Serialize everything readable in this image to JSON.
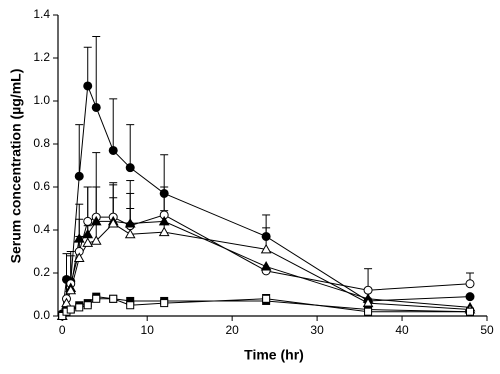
{
  "chart_data": {
    "type": "line",
    "xlabel": "Time (hr)",
    "ylabel": "Serum concentration (µg/mL)",
    "x": [
      0,
      0.5,
      1,
      2,
      3,
      4,
      6,
      8,
      12,
      24,
      36,
      48
    ],
    "xlim": [
      -0.5,
      50
    ],
    "xticks": [
      0,
      10,
      20,
      30,
      40,
      50
    ],
    "ylim": [
      0,
      1.4
    ],
    "yticks": [
      {
        "value": 0,
        "label": "0.0"
      },
      {
        "value": 0.2,
        "label": "0.2"
      },
      {
        "value": 0.4,
        "label": "0.4"
      },
      {
        "value": 0.6,
        "label": "0.6"
      },
      {
        "value": 0.8,
        "label": "0.8"
      },
      {
        "value": 1,
        "label": "1.0"
      },
      {
        "value": 1.2,
        "label": "1.2"
      },
      {
        "value": 1.4,
        "label": "1.4"
      }
    ],
    "series": [
      {
        "marker": "circle",
        "filled": true,
        "color": "#000000",
        "values": [
          0.01,
          0.17,
          0.16,
          0.65,
          1.07,
          0.97,
          0.77,
          0.69,
          0.57,
          0.37,
          0.07,
          0.09
        ],
        "errors": [
          null,
          0.12,
          0.12,
          0.24,
          0.18,
          0.33,
          0.24,
          0.2,
          0.18,
          0.1,
          null,
          null
        ]
      },
      {
        "marker": "circle",
        "filled": false,
        "color": "#000000",
        "values": [
          0,
          0.08,
          0.15,
          0.3,
          0.44,
          0.46,
          0.46,
          0.42,
          0.47,
          0.21,
          0.12,
          0.15
        ],
        "errors": [
          null,
          0.1,
          0.15,
          0.15,
          0.16,
          0.3,
          0.15,
          0.15,
          0.1,
          null,
          0.1,
          0.05
        ]
      },
      {
        "marker": "triangle",
        "filled": true,
        "color": "#000000",
        "values": [
          0,
          0.05,
          0.13,
          0.36,
          0.38,
          0.44,
          0.44,
          0.43,
          0.44,
          0.23,
          0.08,
          0.04
        ],
        "errors": [
          null,
          null,
          null,
          0.16,
          0.22,
          0.16,
          0.18,
          0.2,
          0.16,
          null,
          null,
          null
        ]
      },
      {
        "marker": "triangle",
        "filled": false,
        "color": "#000000",
        "values": [
          0,
          0.06,
          0.12,
          0.27,
          0.34,
          0.35,
          0.43,
          0.38,
          0.39,
          0.31,
          0.06,
          0.03
        ],
        "errors": [
          null,
          null,
          null,
          0.1,
          0.08,
          0.1,
          0.12,
          0.12,
          0.1,
          0.1,
          null,
          null
        ]
      },
      {
        "marker": "square",
        "filled": true,
        "color": "#000000",
        "values": [
          0,
          0.02,
          0.03,
          0.05,
          0.06,
          0.09,
          0.08,
          0.07,
          0.07,
          0.07,
          0.03,
          0.02
        ],
        "errors": [
          null,
          null,
          null,
          null,
          null,
          null,
          null,
          null,
          null,
          null,
          null,
          null
        ]
      },
      {
        "marker": "square",
        "filled": false,
        "color": "#000000",
        "values": [
          0,
          0.02,
          0.03,
          0.04,
          0.05,
          0.08,
          0.08,
          0.05,
          0.06,
          0.08,
          0.02,
          0.02
        ],
        "errors": [
          null,
          null,
          null,
          null,
          null,
          null,
          null,
          null,
          null,
          0.02,
          null,
          null
        ]
      }
    ]
  }
}
